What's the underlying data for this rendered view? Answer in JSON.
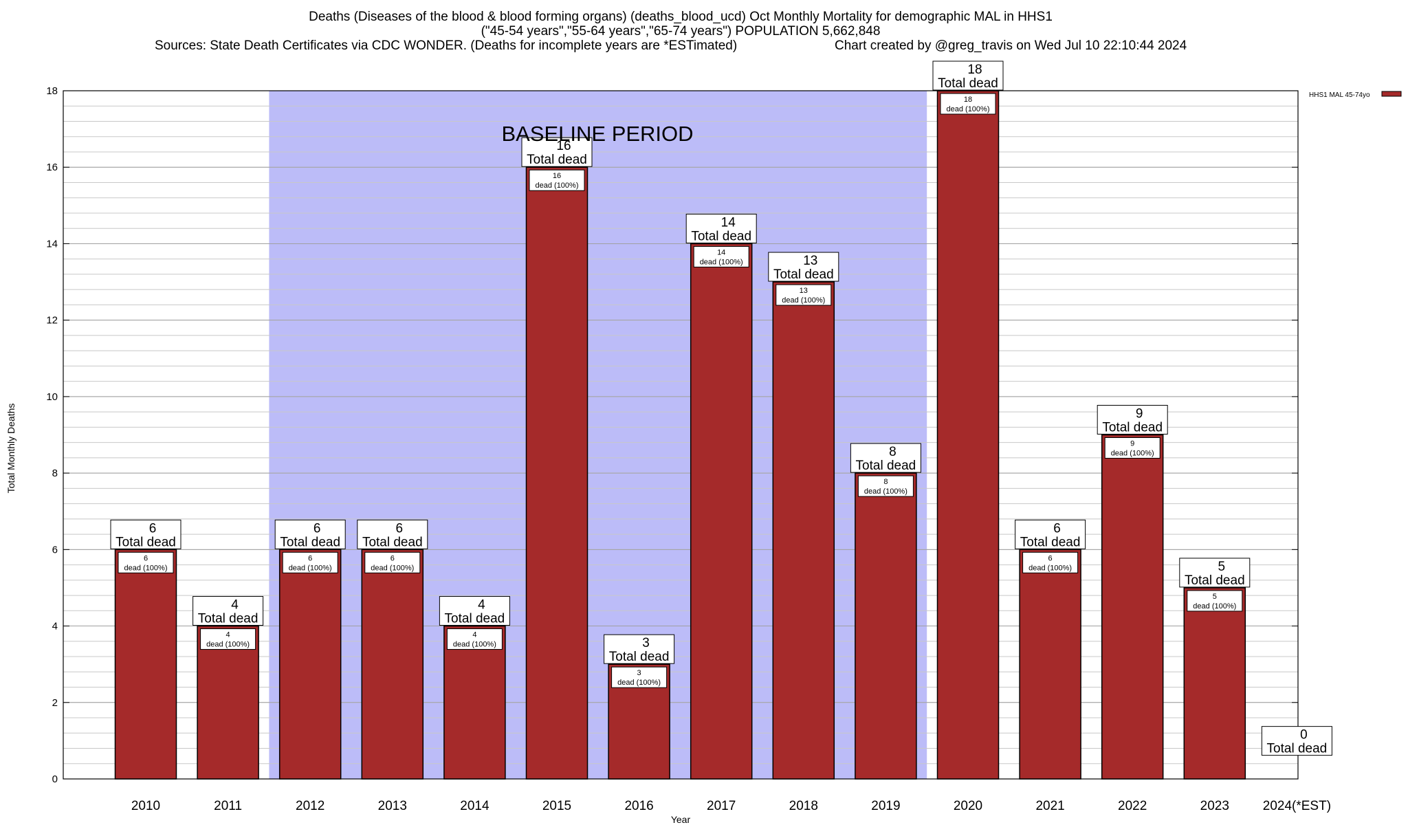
{
  "chart_data": {
    "type": "bar",
    "title_line1": "Deaths (Diseases of the blood & blood forming organs) (deaths_blood_ucd) Oct Monthly Mortality for demographic MAL in HHS1",
    "title_line2": "(\"45-54 years\",\"55-64 years\",\"65-74 years\") POPULATION 5,662,848",
    "title_line3": "Sources: State Death Certificates via CDC WONDER. (Deaths for incomplete years are *ESTimated)",
    "credit": "Chart created by @greg_travis on Wed Jul 10 22:10:44 2024",
    "xlabel": "Year",
    "ylabel": "Total Monthly Deaths",
    "ylim": [
      0,
      18
    ],
    "ytick_labels": [
      "0",
      "2",
      "4",
      "6",
      "8",
      "10",
      "12",
      "14",
      "16",
      "18"
    ],
    "minor_tick_step": 0.4,
    "categories": [
      "2010",
      "2011",
      "2012",
      "2013",
      "2014",
      "2015",
      "2016",
      "2017",
      "2018",
      "2019",
      "2020",
      "2021",
      "2022",
      "2023",
      "2024(*EST)"
    ],
    "series": [
      {
        "name": "HHS1 MAL 45-74yo",
        "color": "#a52a2a",
        "values": [
          6,
          4,
          6,
          6,
          4,
          16,
          3,
          14,
          13,
          8,
          18,
          6,
          9,
          5,
          0
        ]
      }
    ],
    "total_labels": [
      "6",
      "4",
      "6",
      "6",
      "4",
      "16",
      "3",
      "14",
      "13",
      "8",
      "18",
      "6",
      "9",
      "5",
      "0"
    ],
    "total_suffix": "Total dead",
    "inner_suffix": "dead (100%)",
    "baseline": {
      "label": "BASELINE PERIOD",
      "from": "2012",
      "to": "2019",
      "color": "#bcbcf8"
    },
    "legend_position": "top-right",
    "grid": true
  }
}
